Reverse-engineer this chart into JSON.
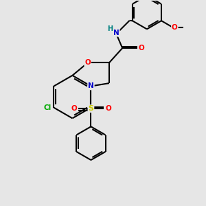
{
  "bg_color": "#e6e6e6",
  "line_color": "#000000",
  "bond_width": 1.5,
  "atom_colors": {
    "O": "#ff0000",
    "N": "#0000cc",
    "S": "#cccc00",
    "Cl": "#00aa00",
    "H": "#008080",
    "C": "#000000"
  },
  "figsize": [
    3.0,
    3.0
  ],
  "dpi": 100
}
